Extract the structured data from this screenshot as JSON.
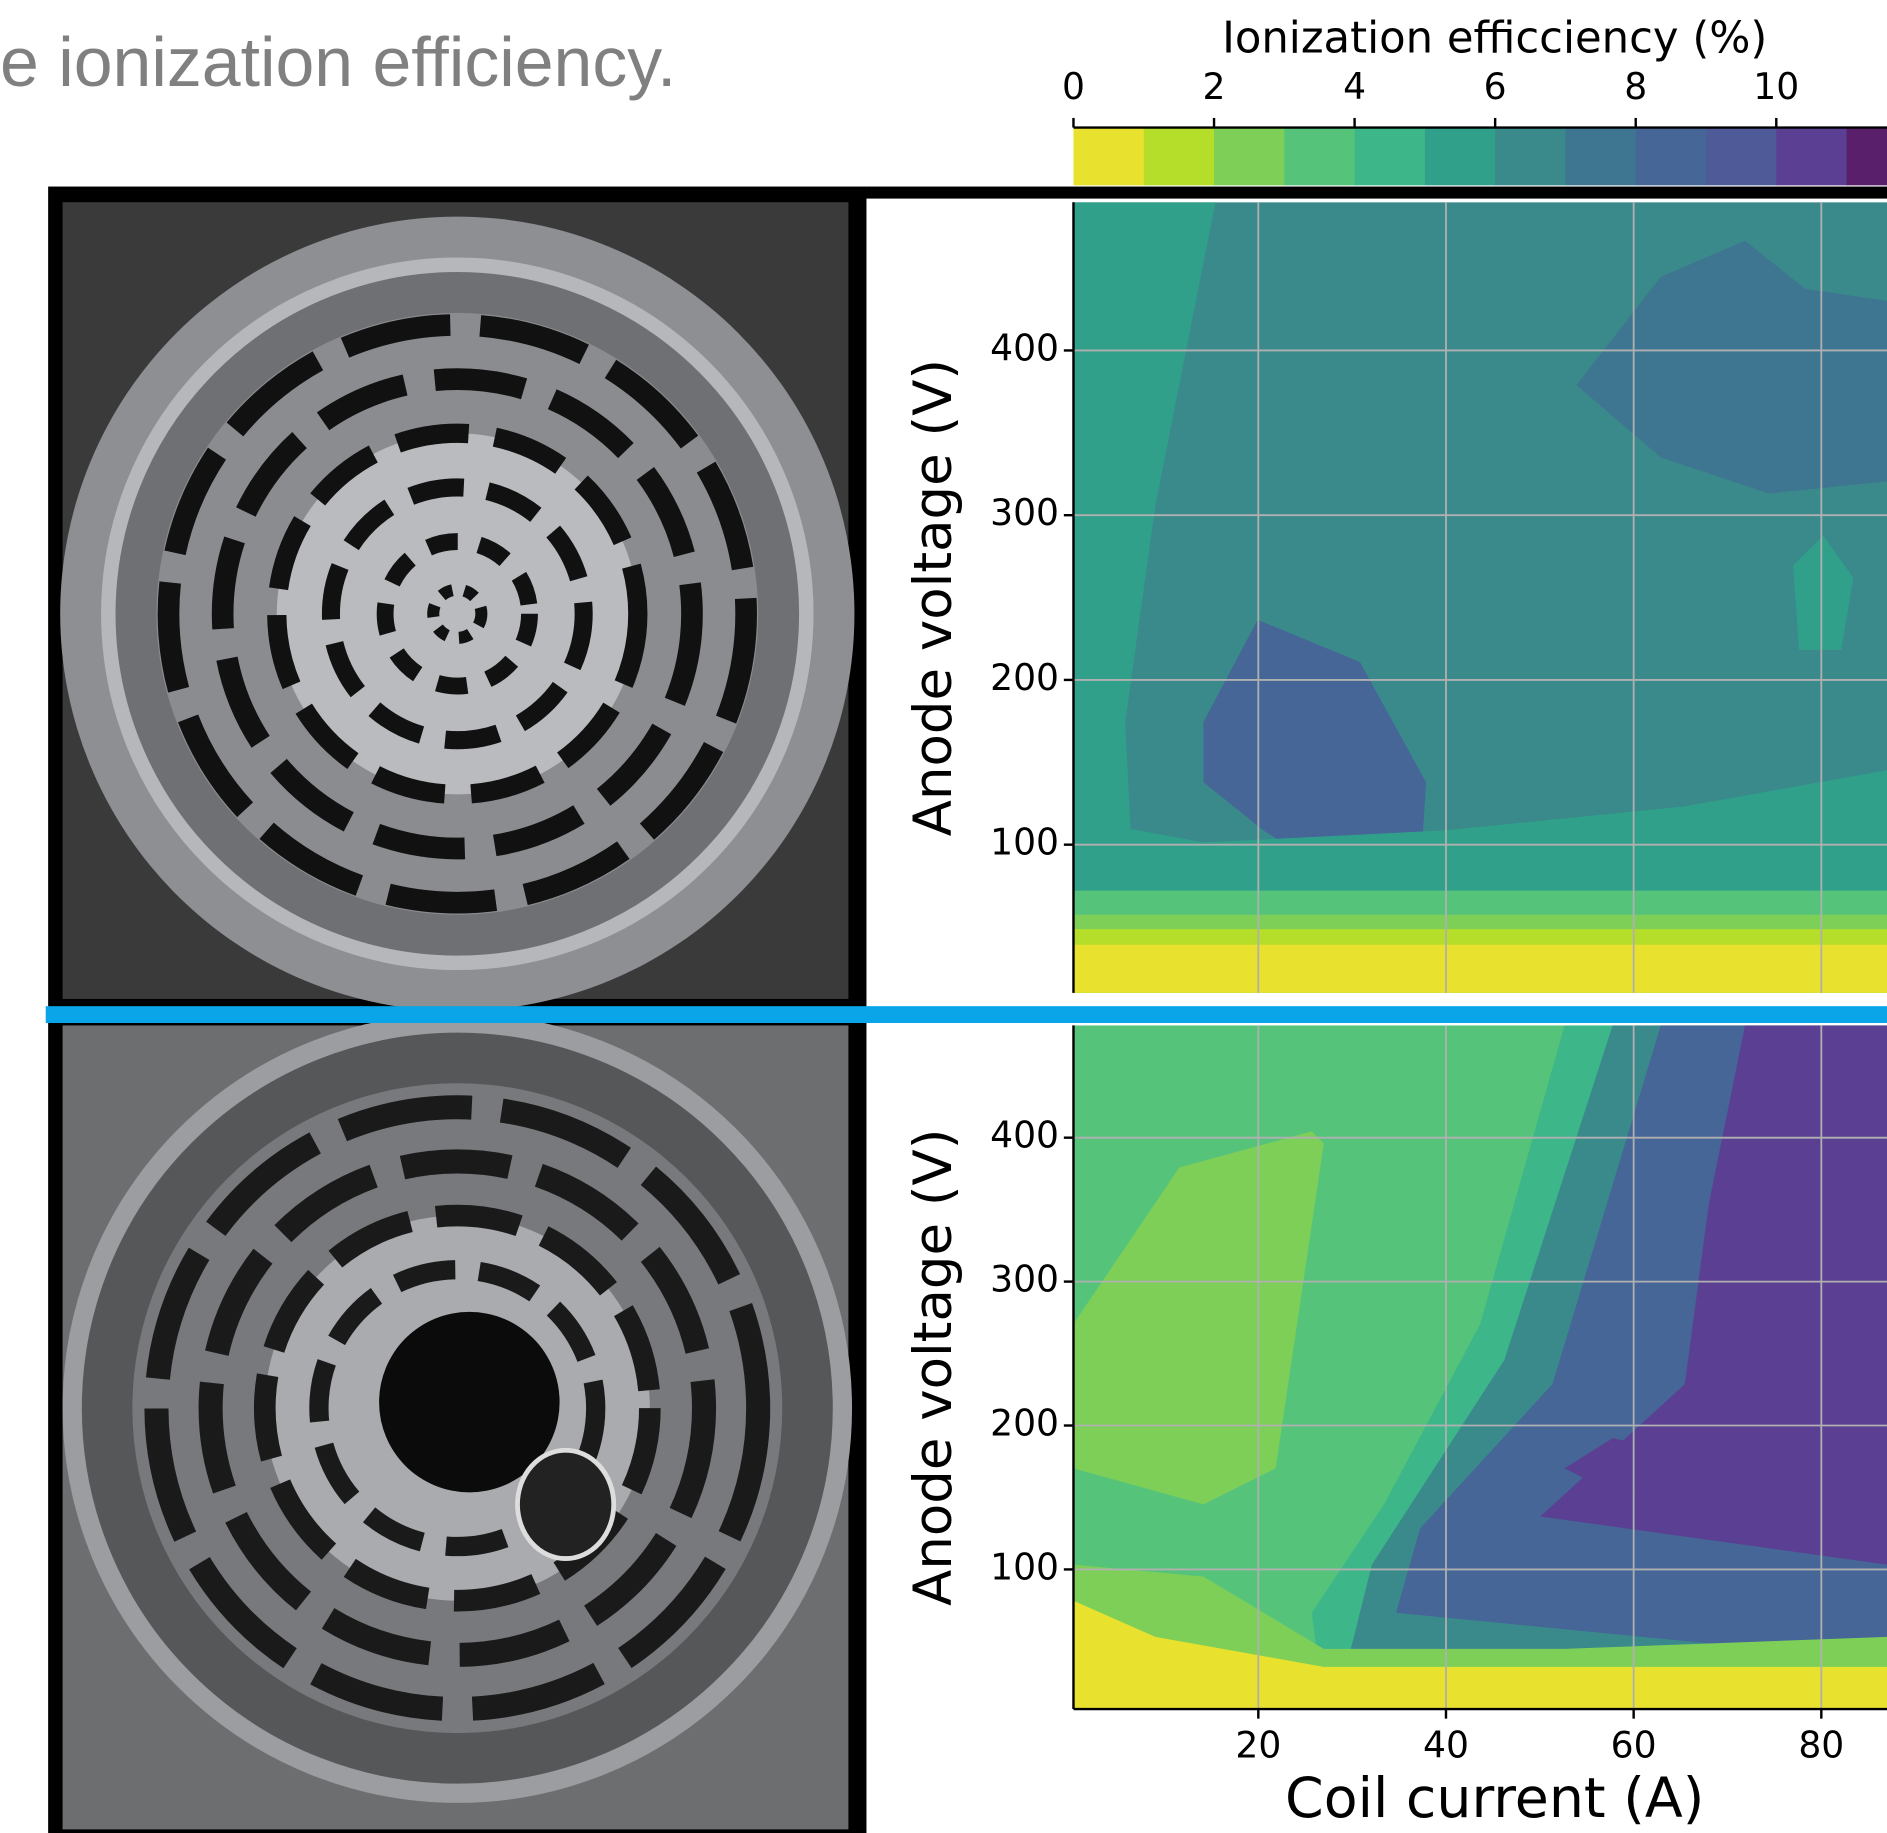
{
  "caption": "e ionization efficiency.",
  "colorbar": {
    "label": "Ionization efficciency (%)",
    "lim": [
      0,
      12
    ],
    "ticks": [
      0,
      2,
      4,
      6,
      8,
      10
    ],
    "colors": [
      "#e8e12e",
      "#b5de2b",
      "#7ecf58",
      "#55c47a",
      "#3db68a",
      "#31a08b",
      "#3a8a8c",
      "#3e7590",
      "#456696",
      "#4f5a98",
      "#5b3f93",
      "#5a1f6a"
    ]
  },
  "chart_data": [
    {
      "type": "contour",
      "ylabel": "Anode voltage (V)",
      "xlim": [
        0.3,
        87
      ],
      "ylim": [
        10,
        490
      ],
      "yticks": [
        100,
        200,
        300,
        400
      ],
      "xticks": [
        20,
        40,
        60,
        80
      ],
      "xticklabels": false,
      "grid": true
    },
    {
      "type": "contour",
      "ylabel": "Anode voltage (V)",
      "xlabel": "Coil current (A)",
      "xlim": [
        0.3,
        87
      ],
      "ylim": [
        3,
        478
      ],
      "yticks": [
        100,
        200,
        300,
        400
      ],
      "xticks": [
        20,
        40,
        60,
        80
      ],
      "xticklabels": true,
      "grid": true
    }
  ]
}
